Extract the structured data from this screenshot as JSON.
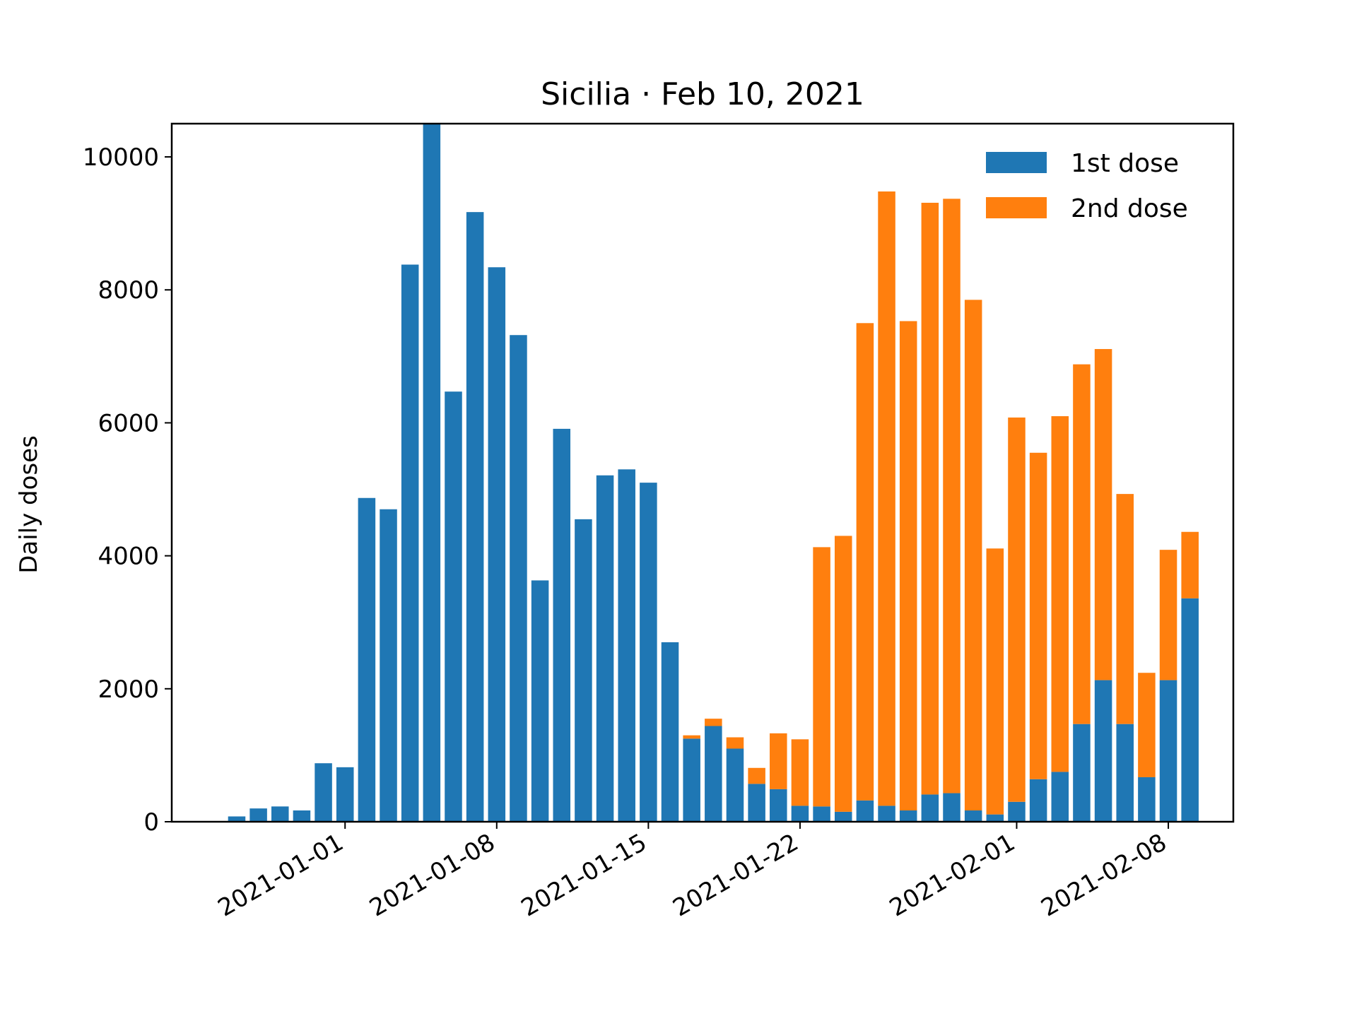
{
  "chart_data": {
    "type": "bar",
    "stacked": true,
    "title": "Sicilia · Feb 10, 2021",
    "xlabel": "",
    "ylabel": "Daily doses",
    "ylim": [
      0,
      10500
    ],
    "yticks": [
      0,
      2000,
      4000,
      6000,
      8000,
      10000
    ],
    "xlim": [
      "2020-12-24",
      "2021-02-11"
    ],
    "xticks": [
      "2021-01-01",
      "2021-01-08",
      "2021-01-15",
      "2021-01-22",
      "2021-02-01",
      "2021-02-08"
    ],
    "grid": false,
    "legend_position": "top-right",
    "dates": [
      "2020-12-27",
      "2020-12-28",
      "2020-12-29",
      "2020-12-30",
      "2020-12-31",
      "2021-01-01",
      "2021-01-02",
      "2021-01-03",
      "2021-01-04",
      "2021-01-05",
      "2021-01-06",
      "2021-01-07",
      "2021-01-08",
      "2021-01-09",
      "2021-01-10",
      "2021-01-11",
      "2021-01-12",
      "2021-01-13",
      "2021-01-14",
      "2021-01-15",
      "2021-01-16",
      "2021-01-17",
      "2021-01-18",
      "2021-01-19",
      "2021-01-20",
      "2021-01-21",
      "2021-01-22",
      "2021-01-23",
      "2021-01-24",
      "2021-01-25",
      "2021-01-26",
      "2021-01-27",
      "2021-01-28",
      "2021-01-29",
      "2021-01-30",
      "2021-01-31",
      "2021-02-01",
      "2021-02-02",
      "2021-02-03",
      "2021-02-04",
      "2021-02-05",
      "2021-02-06",
      "2021-02-07",
      "2021-02-08",
      "2021-02-09"
    ],
    "series": [
      {
        "name": "1st dose",
        "color": "#1f77b4",
        "values": [
          80,
          200,
          230,
          170,
          880,
          820,
          4870,
          4700,
          8380,
          10550,
          6470,
          9170,
          8340,
          7320,
          3630,
          5910,
          4550,
          5210,
          5300,
          5100,
          2700,
          1250,
          1440,
          1100,
          570,
          490,
          240,
          230,
          150,
          320,
          240,
          170,
          410,
          430,
          170,
          110,
          300,
          640,
          750,
          1470,
          2130,
          1470,
          670,
          2130,
          3360
        ]
      },
      {
        "name": "2nd dose",
        "color": "#ff7f0e",
        "values": [
          0,
          0,
          0,
          0,
          0,
          0,
          0,
          0,
          0,
          0,
          0,
          0,
          0,
          0,
          0,
          0,
          0,
          0,
          0,
          0,
          0,
          50,
          110,
          170,
          240,
          840,
          1000,
          3900,
          4150,
          7180,
          9240,
          7360,
          8900,
          8940,
          7680,
          4000,
          5780,
          4910,
          5350,
          5410,
          4980,
          3460,
          1570,
          1960,
          1000
        ]
      }
    ]
  },
  "legend": {
    "items": [
      {
        "label": "1st dose",
        "color": "#1f77b4"
      },
      {
        "label": "2nd dose",
        "color": "#ff7f0e"
      }
    ]
  }
}
